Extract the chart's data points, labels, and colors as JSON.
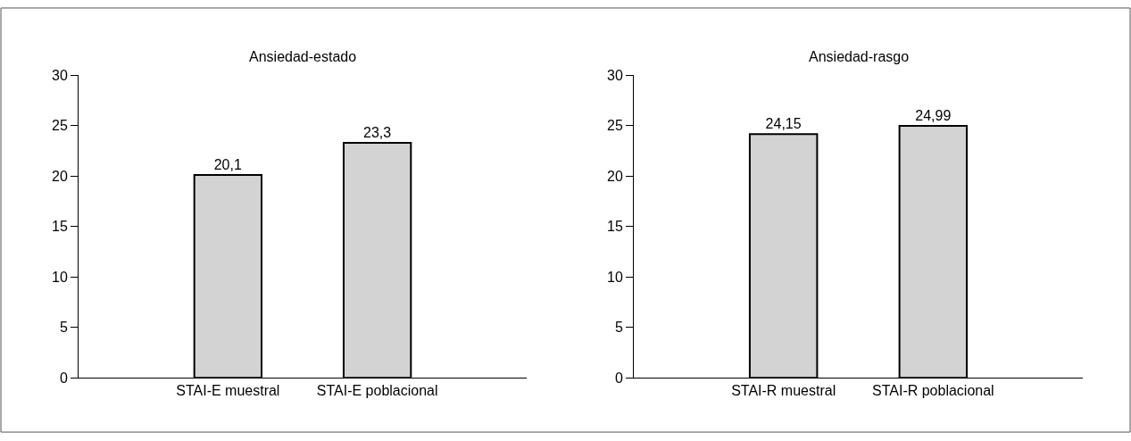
{
  "chart_data": [
    {
      "type": "bar",
      "title": "Ansiedad-estado",
      "categories": [
        "STAI-E muestral",
        "STAI-E poblacional"
      ],
      "values": [
        20.1,
        23.3
      ],
      "value_labels": [
        "20,1",
        "23,3"
      ],
      "color": "#d3d3d3",
      "ylim": [
        0,
        30
      ],
      "yticks": [
        0,
        5,
        10,
        15,
        20,
        25,
        30
      ],
      "grid": false,
      "legend": false
    },
    {
      "type": "bar",
      "title": "Ansiedad-rasgo",
      "categories": [
        "STAI-R muestral",
        "STAI-R poblacional"
      ],
      "values": [
        24.15,
        24.99
      ],
      "value_labels": [
        "24,15",
        "24,99"
      ],
      "color": "#d3d3d3",
      "ylim": [
        0,
        30
      ],
      "yticks": [
        0,
        5,
        10,
        15,
        20,
        25,
        30
      ],
      "grid": false,
      "legend": false
    }
  ]
}
